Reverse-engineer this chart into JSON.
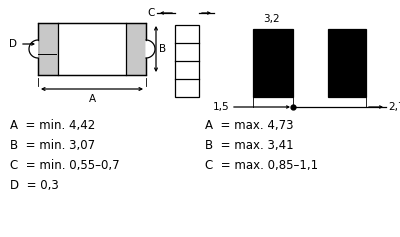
{
  "bg_color": "#ffffff",
  "line_color": "#000000",
  "gray_fill": "#c8c8c8",
  "text_labels_left": [
    "A  = min. 4,42",
    "B  = min. 3,07",
    "C  = min. 0,55–0,7",
    "D  = 0,3"
  ],
  "text_labels_right": [
    "A  = max. 4,73",
    "B  = max. 3,41",
    "C  = max. 0,85–1,1",
    ""
  ],
  "dim_label_32": "3,2",
  "dim_label_15": "1,5",
  "dim_label_27": "2,7",
  "label_A": "A",
  "label_B": "B",
  "label_C": "C",
  "label_D": "D"
}
